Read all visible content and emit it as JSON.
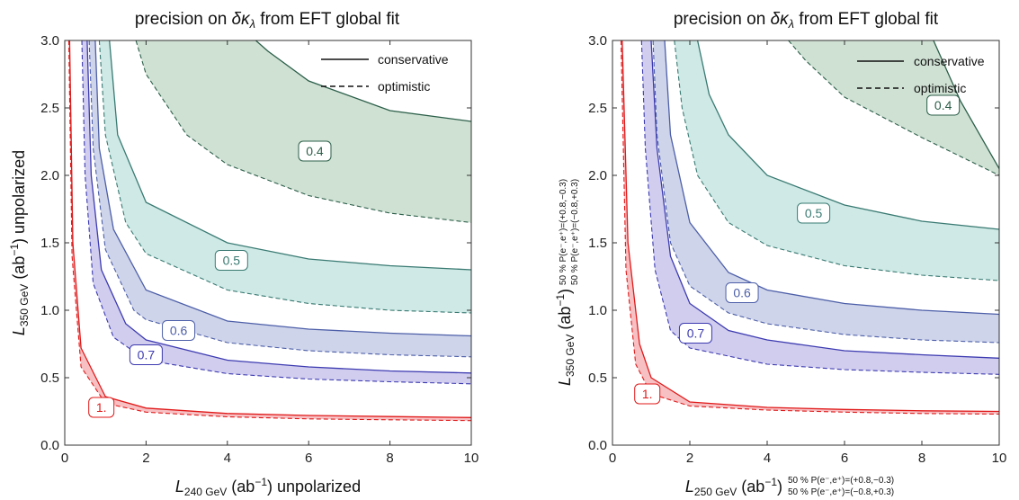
{
  "chart_data": [
    {
      "type": "area",
      "title_parts": [
        "precision on ",
        "δκ",
        "λ",
        " from EFT global fit"
      ],
      "xlabel_parts": [
        "L",
        "240 GeV",
        " (ab",
        "−1",
        ") unpolarized"
      ],
      "ylabel_parts": [
        "L",
        "350 GeV",
        " (ab",
        "−1",
        ") unpolarized"
      ],
      "xlim": [
        0,
        10
      ],
      "ylim": [
        0,
        3
      ],
      "xticks": [
        "0",
        "2",
        "4",
        "6",
        "8",
        "10"
      ],
      "yticks": [
        "0.0",
        "0.5",
        "1.0",
        "1.5",
        "2.0",
        "2.5",
        "3.0"
      ],
      "legend": {
        "position": "top-right",
        "entries": [
          {
            "label": "conservative",
            "style": "solid"
          },
          {
            "label": "optimistic",
            "style": "dashed"
          }
        ]
      },
      "contours": [
        {
          "label": "1.",
          "color": "#e01a1a",
          "fill": "#f6b5b8",
          "conservative": {
            "points": [
              [
                0.12,
                3.0
              ],
              [
                0.2,
                1.5
              ],
              [
                0.4,
                0.72
              ],
              [
                1,
                0.36
              ],
              [
                2,
                0.275
              ],
              [
                4,
                0.235
              ],
              [
                6,
                0.22
              ],
              [
                8,
                0.212
              ],
              [
                10,
                0.205
              ]
            ]
          },
          "optimistic": {
            "points": [
              [
                0.1,
                3.0
              ],
              [
                0.18,
                1.4
              ],
              [
                0.4,
                0.58
              ],
              [
                1,
                0.31
              ],
              [
                2,
                0.245
              ],
              [
                4,
                0.21
              ],
              [
                6,
                0.195
              ],
              [
                8,
                0.188
              ],
              [
                10,
                0.182
              ]
            ]
          },
          "label_at": [
            0.9,
            0.28
          ]
        },
        {
          "label": "0.7",
          "color": "#3d3bb0",
          "fill": "#c9c4ec",
          "conservative": {
            "points": [
              [
                0.55,
                3.0
              ],
              [
                0.65,
                2.0
              ],
              [
                0.9,
                1.3
              ],
              [
                1.5,
                0.9
              ],
              [
                2,
                0.78
              ],
              [
                4,
                0.63
              ],
              [
                6,
                0.58
              ],
              [
                8,
                0.55
              ],
              [
                10,
                0.535
              ]
            ]
          },
          "optimistic": {
            "points": [
              [
                0.42,
                3.0
              ],
              [
                0.5,
                2.0
              ],
              [
                0.7,
                1.2
              ],
              [
                1.2,
                0.8
              ],
              [
                2,
                0.63
              ],
              [
                4,
                0.53
              ],
              [
                6,
                0.49
              ],
              [
                8,
                0.47
              ],
              [
                10,
                0.455
              ]
            ]
          },
          "label_at": [
            2.0,
            0.67
          ]
        },
        {
          "label": "0.6",
          "color": "#4d5fa8",
          "fill": "#c6cde6",
          "conservative": {
            "points": [
              [
                0.75,
                3.0
              ],
              [
                0.85,
                2.2
              ],
              [
                1.2,
                1.6
              ],
              [
                2,
                1.15
              ],
              [
                4,
                0.92
              ],
              [
                6,
                0.86
              ],
              [
                8,
                0.83
              ],
              [
                10,
                0.81
              ]
            ]
          },
          "optimistic": {
            "points": [
              [
                0.6,
                3.0
              ],
              [
                0.7,
                2.2
              ],
              [
                1.0,
                1.45
              ],
              [
                1.7,
                1.0
              ],
              [
                2,
                0.93
              ],
              [
                4,
                0.76
              ],
              [
                6,
                0.7
              ],
              [
                8,
                0.67
              ],
              [
                10,
                0.655
              ]
            ]
          },
          "label_at": [
            2.8,
            0.85
          ]
        },
        {
          "label": "0.5",
          "color": "#3a7a72",
          "fill": "#c6e5e2",
          "conservative": {
            "points": [
              [
                1.1,
                3.0
              ],
              [
                1.3,
                2.3
              ],
              [
                2,
                1.8
              ],
              [
                4,
                1.5
              ],
              [
                6,
                1.38
              ],
              [
                8,
                1.33
              ],
              [
                10,
                1.3
              ]
            ]
          },
          "optimistic": {
            "points": [
              [
                0.85,
                3.0
              ],
              [
                1.0,
                2.3
              ],
              [
                1.5,
                1.65
              ],
              [
                2,
                1.42
              ],
              [
                4,
                1.15
              ],
              [
                6,
                1.05
              ],
              [
                8,
                1.0
              ],
              [
                10,
                0.98
              ]
            ]
          },
          "label_at": [
            4.1,
            1.37
          ]
        },
        {
          "label": "0.4",
          "color": "#2c5f4a",
          "fill": "#c7dccb",
          "conservative": {
            "points": [
              [
                4.7,
                3.0
              ],
              [
                5,
                2.92
              ],
              [
                6,
                2.7
              ],
              [
                8,
                2.48
              ],
              [
                10,
                2.4
              ]
            ]
          },
          "optimistic": {
            "points": [
              [
                1.75,
                3.0
              ],
              [
                2,
                2.75
              ],
              [
                3,
                2.3
              ],
              [
                4,
                2.08
              ],
              [
                6,
                1.85
              ],
              [
                8,
                1.72
              ],
              [
                10,
                1.65
              ]
            ]
          },
          "label_at": [
            6.15,
            2.18
          ]
        }
      ]
    },
    {
      "type": "area",
      "title_parts": [
        "precision on ",
        "δκ",
        "λ",
        " from EFT global fit"
      ],
      "xlabel_parts": [
        "L",
        "250 GeV",
        " (ab",
        "−1",
        ")"
      ],
      "xlabel_pol": [
        "50 % P(e⁻,e⁺)=(+0.8,−0.3)",
        "50 % P(e⁻,e⁺)=(−0.8,+0.3)"
      ],
      "ylabel_parts": [
        "L",
        "350 GeV",
        " (ab",
        "−1",
        ")"
      ],
      "ylabel_pol": [
        "50 % P(e⁻,e⁺)=(+0.8,−0.3)",
        "50 % P(e⁻,e⁺)=(−0.8,+0.3)"
      ],
      "xlim": [
        0,
        10
      ],
      "ylim": [
        0,
        3
      ],
      "xticks": [
        "0",
        "2",
        "4",
        "6",
        "8",
        "10"
      ],
      "yticks": [
        "0.0",
        "0.5",
        "1.0",
        "1.5",
        "2.0",
        "2.5",
        "3.0"
      ],
      "legend": {
        "position": "top-right",
        "entries": [
          {
            "label": "conservative",
            "style": "solid"
          },
          {
            "label": "optimistic",
            "style": "dashed"
          }
        ]
      },
      "contours": [
        {
          "label": "1.",
          "color": "#e01a1a",
          "fill": "#f6b5b8",
          "conservative": {
            "points": [
              [
                0.25,
                3.0
              ],
              [
                0.4,
                1.5
              ],
              [
                0.7,
                0.75
              ],
              [
                1,
                0.5
              ],
              [
                2,
                0.32
              ],
              [
                4,
                0.28
              ],
              [
                6,
                0.265
              ],
              [
                8,
                0.255
              ],
              [
                10,
                0.25
              ]
            ]
          },
          "optimistic": {
            "points": [
              [
                0.22,
                3.0
              ],
              [
                0.35,
                1.3
              ],
              [
                0.6,
                0.6
              ],
              [
                1,
                0.38
              ],
              [
                2,
                0.29
              ],
              [
                4,
                0.26
              ],
              [
                6,
                0.245
              ],
              [
                8,
                0.235
              ],
              [
                10,
                0.23
              ]
            ]
          },
          "label_at": [
            0.9,
            0.38
          ]
        },
        {
          "label": "0.7",
          "color": "#3d3bb0",
          "fill": "#c9c4ec",
          "conservative": {
            "points": [
              [
                1.0,
                3.0
              ],
              [
                1.15,
                2.2
              ],
              [
                1.5,
                1.4
              ],
              [
                2,
                1.05
              ],
              [
                3,
                0.85
              ],
              [
                4,
                0.78
              ],
              [
                6,
                0.7
              ],
              [
                8,
                0.67
              ],
              [
                10,
                0.645
              ]
            ]
          },
          "optimistic": {
            "points": [
              [
                0.75,
                3.0
              ],
              [
                0.85,
                2.2
              ],
              [
                1.1,
                1.3
              ],
              [
                1.5,
                0.85
              ],
              [
                2,
                0.72
              ],
              [
                4,
                0.6
              ],
              [
                6,
                0.56
              ],
              [
                8,
                0.54
              ],
              [
                10,
                0.525
              ]
            ]
          },
          "label_at": [
            2.15,
            0.83
          ]
        },
        {
          "label": "0.6",
          "color": "#4d5fa8",
          "fill": "#c6cde6",
          "conservative": {
            "points": [
              [
                1.35,
                3.0
              ],
              [
                1.5,
                2.3
              ],
              [
                2,
                1.65
              ],
              [
                3,
                1.28
              ],
              [
                4,
                1.15
              ],
              [
                6,
                1.05
              ],
              [
                8,
                1.0
              ],
              [
                10,
                0.97
              ]
            ]
          },
          "optimistic": {
            "points": [
              [
                1.05,
                3.0
              ],
              [
                1.15,
                2.3
              ],
              [
                1.5,
                1.5
              ],
              [
                2,
                1.18
              ],
              [
                3,
                0.98
              ],
              [
                4,
                0.9
              ],
              [
                6,
                0.82
              ],
              [
                8,
                0.78
              ],
              [
                10,
                0.76
              ]
            ]
          },
          "label_at": [
            3.35,
            1.13
          ]
        },
        {
          "label": "0.5",
          "color": "#3a7a72",
          "fill": "#c6e5e2",
          "conservative": {
            "points": [
              [
                2.2,
                3.0
              ],
              [
                2.5,
                2.6
              ],
              [
                3,
                2.3
              ],
              [
                4,
                2.0
              ],
              [
                6,
                1.78
              ],
              [
                8,
                1.66
              ],
              [
                10,
                1.6
              ]
            ]
          },
          "optimistic": {
            "points": [
              [
                1.6,
                3.0
              ],
              [
                1.8,
                2.5
              ],
              [
                2.2,
                2.0
              ],
              [
                3,
                1.65
              ],
              [
                4,
                1.48
              ],
              [
                6,
                1.33
              ],
              [
                8,
                1.26
              ],
              [
                10,
                1.22
              ]
            ]
          },
          "label_at": [
            5.2,
            1.72
          ]
        },
        {
          "label": "0.4",
          "color": "#2c5f4a",
          "fill": "#c7dccb",
          "conservative": {
            "points": [
              [
                8.3,
                3.0
              ],
              [
                9,
                2.55
              ],
              [
                10,
                2.05
              ]
            ]
          },
          "optimistic": {
            "points": [
              [
                4.55,
                3.0
              ],
              [
                5,
                2.85
              ],
              [
                6,
                2.58
              ],
              [
                8,
                2.28
              ],
              [
                10,
                2.0
              ]
            ]
          },
          "label_at": [
            8.55,
            2.52
          ]
        }
      ]
    }
  ]
}
